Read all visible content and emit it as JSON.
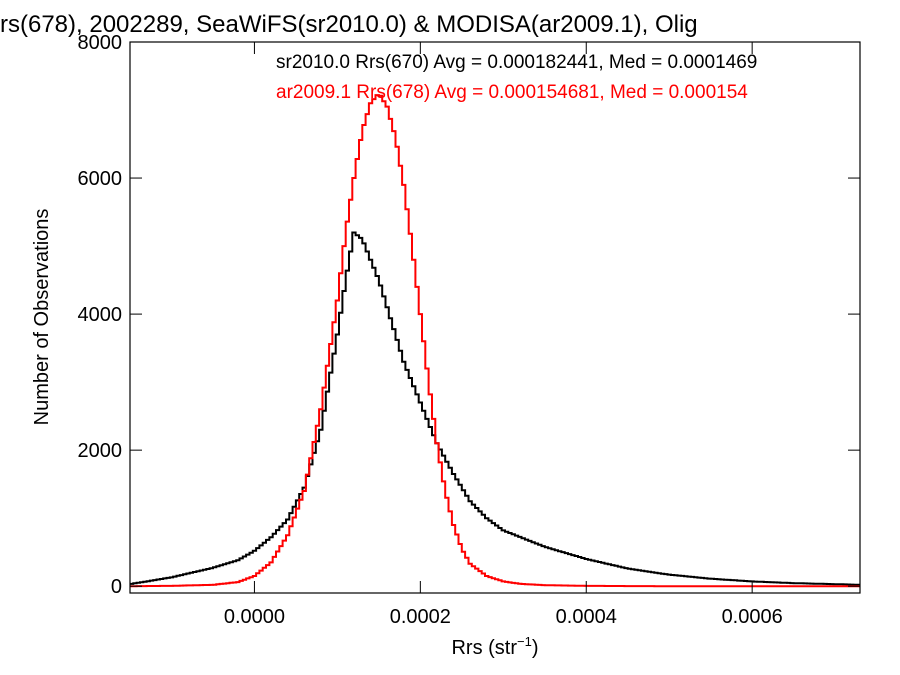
{
  "chart_data": {
    "type": "line",
    "title": "rs(678), 2002289, SeaWiFS(sr2010.0) & MODISA(ar2009.1), Olig",
    "xlabel_main": "Rrs (str",
    "xlabel_sup": "−1",
    "xlabel_close": ")",
    "ylabel": "Number of Observations",
    "xlim": [
      -0.00015,
      0.00073
    ],
    "ylim": [
      -100,
      8000
    ],
    "x_ticks": [
      0.0,
      0.0002,
      0.0004,
      0.0006
    ],
    "x_tick_labels": [
      "0.0000",
      "0.0002",
      "0.0004",
      "0.0006"
    ],
    "y_ticks": [
      0,
      2000,
      4000,
      6000,
      8000
    ],
    "y_tick_labels": [
      "0",
      "2000",
      "4000",
      "6000",
      "8000"
    ],
    "grid": false,
    "colors": {
      "sr2010": "#000000",
      "ar2009": "#ff0000"
    },
    "annotations": [
      {
        "text": "sr2010.0 Rrs(670) Avg = 0.000182441, Med = 0.0001469",
        "color": "#000000"
      },
      {
        "text": "ar2009.1 Rrs(678) Avg = 0.000154681, Med = 0.000154",
        "color": "#ff0000"
      }
    ],
    "series": [
      {
        "color": "#000000",
        "x": [
          -0.00015,
          -0.0001,
          -5e-05,
          -2e-05,
          0.0,
          2e-05,
          4e-05,
          6e-05,
          8e-05,
          0.0001,
          0.00011,
          0.00012,
          0.00013,
          0.00014,
          0.00015,
          0.00016,
          0.00017,
          0.00018,
          0.0002,
          0.00022,
          0.00024,
          0.00026,
          0.00028,
          0.0003,
          0.00035,
          0.0004,
          0.00045,
          0.0005,
          0.00055,
          0.0006,
          0.00065,
          0.0007,
          0.00073
        ],
        "y": [
          30,
          130,
          270,
          380,
          520,
          720,
          980,
          1450,
          2300,
          3700,
          4500,
          5200,
          5100,
          4800,
          4500,
          4100,
          3700,
          3300,
          2700,
          2100,
          1650,
          1250,
          1000,
          820,
          580,
          400,
          260,
          170,
          110,
          70,
          45,
          30,
          20
        ]
      },
      {
        "color": "#ff0000",
        "x": [
          -0.00015,
          -0.0001,
          -5e-05,
          -2e-05,
          0.0,
          2e-05,
          4e-05,
          6e-05,
          8e-05,
          0.0001,
          0.00011,
          0.00012,
          0.00013,
          0.00014,
          0.00015,
          0.00016,
          0.00017,
          0.00018,
          0.00019,
          0.0002,
          0.00021,
          0.00022,
          0.00023,
          0.00024,
          0.00025,
          0.00026,
          0.00028,
          0.0003,
          0.00032,
          0.00035,
          0.0004,
          0.00045,
          0.0005,
          0.00073
        ],
        "y": [
          0,
          5,
          20,
          60,
          150,
          350,
          750,
          1400,
          2600,
          4200,
          5200,
          6000,
          6700,
          7100,
          7250,
          7050,
          6600,
          5900,
          5000,
          4000,
          3000,
          2100,
          1400,
          900,
          550,
          330,
          150,
          70,
          35,
          15,
          5,
          2,
          0,
          0
        ]
      }
    ]
  }
}
